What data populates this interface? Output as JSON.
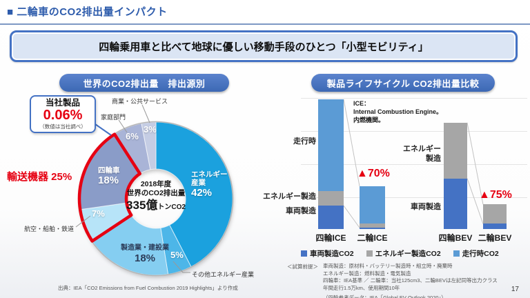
{
  "slide": {
    "title": "■ 二輪車のCO2排出量インパクト",
    "message": "四輪乗用車と比べて地球に優しい移動手段のひとつ「小型モビリティ」",
    "page_number": "17"
  },
  "left_panel": {
    "header": "世界のCO2排出量　排出源別",
    "callout": {
      "title": "当社製品",
      "value": "0.06%",
      "note": "（数値は当社調べ）"
    },
    "transport_label": "輸送機器 25%",
    "source": "出典：IEA「CO2 Emissions from Fuel Combustion 2019 Highlights」より作成"
  },
  "right_panel": {
    "header": "製品ライフサイクル CO2排出量比較",
    "ice_note": {
      "line1": "ICE：",
      "line2": "Internal Combustion Engine。",
      "line3": "内燃機関。"
    },
    "labels": {
      "running": "走行時",
      "energy_ice": "エネルギー製造",
      "vehicle_ice": "車両製造",
      "energy_bev": "エネルギー製造",
      "vehicle_bev": "車両製造"
    },
    "assumptions_label": "＜試算前提＞",
    "assumptions": [
      "車両製造：原材料・バッテリー製造時・組立時・廃棄時",
      "エネルギー製造：燃料製造・電気製造",
      "四輪車：IEA基準 ／ 二輪車：当社125cm3、二輪BEVは左記同等出力クラス",
      "年間走行1.5万km、使用期間10年",
      "（四輪参考データ：IEA「Global EV Outlook 2020」）"
    ]
  },
  "chart_data": [
    {
      "type": "pie",
      "donut": true,
      "title": "世界のCO2排出量　排出源別",
      "center": {
        "line1": "2018年度",
        "line2": "世界のCO2排出量",
        "big": "335億",
        "unit": "トンCO2"
      },
      "segments": [
        {
          "label": "エネルギー産業",
          "value": 42,
          "pct": "42%",
          "color": "#1ba1de"
        },
        {
          "label": "その他エネルギー産業",
          "value": 5,
          "pct": "5%",
          "color": "#4db6e8"
        },
        {
          "label": "製造業・建設業",
          "value": 18,
          "pct": "18%",
          "color": "#85cef1"
        },
        {
          "label": "航空・船舶・鉄道",
          "value": 7,
          "pct": "7%",
          "color": "#b7e4f8"
        },
        {
          "label": "四輪車",
          "value": 18,
          "pct": "18%",
          "color": "#8a9cc8"
        },
        {
          "label": "家庭部門",
          "value": 6,
          "pct": "6%",
          "color": "#a9b4d7"
        },
        {
          "label": "商業・公共サービス",
          "value": 3,
          "pct": "3%",
          "color": "#c5cde4"
        }
      ],
      "highlight": {
        "label": "輸送機器 25%",
        "covers": [
          3,
          4
        ],
        "color": "#e60012"
      },
      "company_share": {
        "label": "当社製品",
        "value": "0.06%"
      }
    },
    {
      "type": "bar",
      "stacked": true,
      "categories": [
        "四輪ICE",
        "二輪ICE",
        "四輪BEV",
        "二輪BEV"
      ],
      "series": [
        {
          "name": "車両製造CO2",
          "color": "#4472c4",
          "values": [
            18,
            1,
            39,
            4
          ]
        },
        {
          "name": "エネルギー製造CO2",
          "color": "#a6a6a6",
          "values": [
            11,
            3,
            43,
            15
          ]
        },
        {
          "name": "走行時CO2",
          "color": "#5b9bd5",
          "values": [
            71,
            29,
            0,
            0
          ]
        }
      ],
      "unit": "relative index (四輪ICE total = 100)",
      "annotations": [
        {
          "pair": [
            "四輪ICE",
            "二輪ICE"
          ],
          "text": "▲70%"
        },
        {
          "pair": [
            "四輪BEV",
            "二輪BEV"
          ],
          "text": "▲75%"
        }
      ]
    }
  ]
}
